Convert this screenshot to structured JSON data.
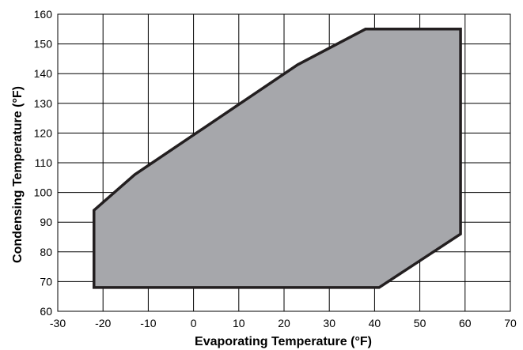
{
  "chart_data": {
    "type": "area",
    "title": "",
    "xlabel": "Evaporating Temperature (°F)",
    "ylabel": "Condensing Temperature (°F)",
    "xlim": [
      -30,
      70
    ],
    "ylim": [
      60,
      160
    ],
    "x_ticks": [
      -30,
      -20,
      -10,
      0,
      10,
      20,
      30,
      40,
      50,
      60,
      70
    ],
    "y_ticks": [
      60,
      70,
      80,
      90,
      100,
      110,
      120,
      130,
      140,
      150,
      160
    ],
    "grid": true,
    "legend": "none",
    "fill_color": "#a6a7ab",
    "line_color": "#231f20",
    "envelope": {
      "x": [
        -22,
        -13,
        23,
        38,
        59,
        59,
        41,
        -22
      ],
      "y": [
        94,
        106,
        143,
        155,
        155,
        86,
        68,
        68
      ]
    }
  }
}
